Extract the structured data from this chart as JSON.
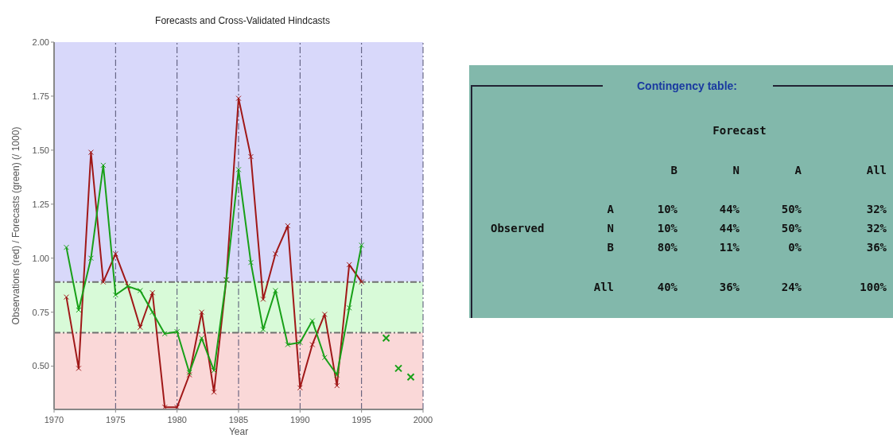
{
  "chart_data": [
    {
      "type": "line",
      "title": "Forecasts and Cross-Validated Hindcasts",
      "xlabel": "Year",
      "ylabel": "Observations (red) / Forecasts (green) (/ 1000)",
      "x": [
        1971,
        1972,
        1973,
        1974,
        1975,
        1976,
        1977,
        1978,
        1979,
        1980,
        1981,
        1982,
        1983,
        1984,
        1985,
        1986,
        1987,
        1988,
        1989,
        1990,
        1991,
        1992,
        1993,
        1994,
        1995
      ],
      "series": [
        {
          "color": "#a01818",
          "marker": "cross",
          "values": [
            0.82,
            0.49,
            1.49,
            0.89,
            1.02,
            0.87,
            0.68,
            0.84,
            0.31,
            0.31,
            0.46,
            0.75,
            0.38,
            0.9,
            1.74,
            1.47,
            0.81,
            1.02,
            1.15,
            0.4,
            0.6,
            0.74,
            0.41,
            0.97,
            0.89
          ]
        },
        {
          "color": "#18a018",
          "marker": "cross",
          "values": [
            1.05,
            0.76,
            1.0,
            1.43,
            0.83,
            0.87,
            0.85,
            0.75,
            0.65,
            0.66,
            0.47,
            0.63,
            0.48,
            0.9,
            1.41,
            0.98,
            0.67,
            0.85,
            0.6,
            0.61,
            0.71,
            0.54,
            0.46,
            0.77,
            1.06
          ]
        },
        {
          "type": "scatter",
          "color": "#18a018",
          "marker": "cross",
          "x": [
            1997,
            1998,
            1999
          ],
          "values": [
            0.63,
            0.49,
            0.45
          ]
        }
      ],
      "xlim": [
        1970,
        2000
      ],
      "xticks": [
        1970,
        1975,
        1980,
        1985,
        1990,
        1995,
        2000
      ],
      "ylim": [
        0.3,
        2.0
      ],
      "yticks": [
        {
          "value": 0.5,
          "label": "0.50"
        },
        {
          "value": 0.75,
          "label": "0.75"
        },
        {
          "value": 1.0,
          "label": "1.00"
        },
        {
          "value": 1.25,
          "label": "1.25"
        },
        {
          "value": 1.5,
          "label": "1.50"
        },
        {
          "value": 1.75,
          "label": "1.75"
        },
        {
          "value": 2.0,
          "label": "2.00"
        }
      ],
      "grid": "x",
      "line_style": "solid",
      "bands": [
        {
          "axis": "y",
          "from": 0.89,
          "to": 2.0,
          "color": "#d8d8fa"
        },
        {
          "axis": "y",
          "from": 0.655,
          "to": 0.89,
          "color": "#d8fad8"
        },
        {
          "axis": "y",
          "from": 0.3,
          "to": 0.655,
          "color": "#fad8d8"
        }
      ],
      "ref_lines": [
        {
          "axis": "y",
          "value": 0.89,
          "line_style": "dashed",
          "color": "#707070"
        },
        {
          "axis": "y",
          "value": 0.655,
          "line_style": "dashed",
          "color": "#707070"
        }
      ]
    },
    {
      "type": "other",
      "title": "Contingency table:",
      "xlabel": "Forecast",
      "ylabel": "Observed",
      "categories": [
        "B",
        "N",
        "A",
        "All"
      ],
      "y_categories": [
        "A",
        "N",
        "B",
        "All"
      ],
      "cell_labels": [
        [
          "10%",
          "44%",
          "50%",
          "32%"
        ],
        [
          "10%",
          "44%",
          "50%",
          "32%"
        ],
        [
          "80%",
          "11%",
          "0%",
          "36%"
        ],
        [
          "40%",
          "36%",
          "24%",
          "100%"
        ]
      ]
    }
  ]
}
